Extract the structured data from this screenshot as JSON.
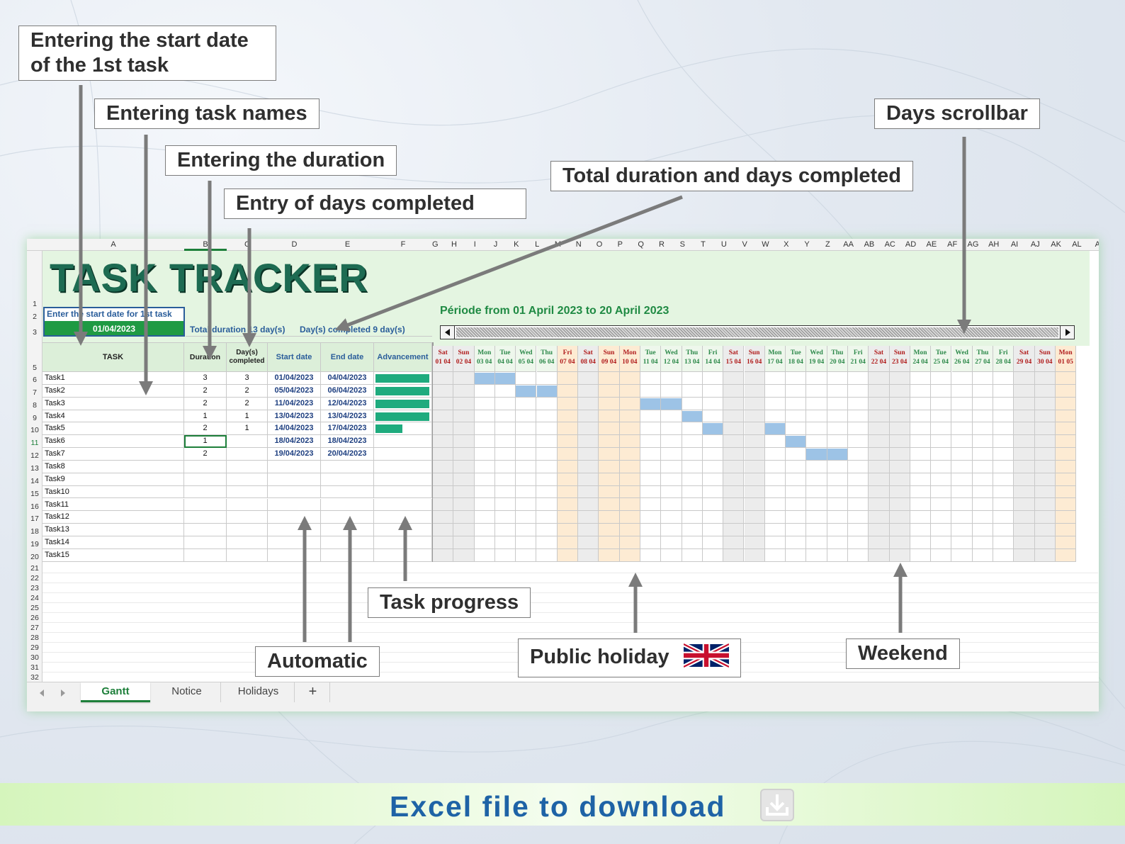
{
  "callouts": {
    "start_date": "Entering the start date\nof the 1st task",
    "task_names": "Entering task names",
    "duration": "Entering the duration",
    "days_completed": "Entry of days completed",
    "total_duration": "Total duration and days completed",
    "scrollbar": "Days scrollbar",
    "task_progress": "Task progress",
    "automatic": "Automatic",
    "public_holiday": "Public holiday",
    "weekend": "Weekend"
  },
  "sheet": {
    "title": "TASK TRACKER",
    "start_prompt": "Enter the start date for 1st task",
    "start_date": "01/04/2023",
    "total_duration": "Total duration 13 day(s)",
    "days_completed_total": "Day(s) completed 9 day(s)",
    "period": "Période from 01 April 2023 to 20 April 2023",
    "col_letters": [
      "A",
      "B",
      "C",
      "D",
      "E",
      "F",
      "G",
      "H",
      "I",
      "J",
      "K",
      "L",
      "M",
      "N",
      "O",
      "P",
      "Q",
      "R",
      "S",
      "T",
      "U",
      "V",
      "W",
      "X",
      "Y",
      "Z",
      "AA",
      "AB",
      "AC",
      "AD",
      "AE",
      "AF",
      "AG",
      "AH",
      "AI",
      "AJ",
      "AK",
      "AL",
      "A"
    ],
    "headers": {
      "task": "TASK",
      "duration": "Duration",
      "days_completed": "Day(s) completed",
      "start": "Start date",
      "end": "End date",
      "advancement": "Advancement"
    },
    "row_numbers": [
      "1",
      "2",
      "3",
      "5",
      "6",
      "7",
      "8",
      "9",
      "10",
      "11",
      "12",
      "13",
      "14",
      "15",
      "16",
      "17",
      "18",
      "19",
      "20",
      "21",
      "22",
      "23",
      "24",
      "25",
      "26",
      "27",
      "28",
      "29",
      "30",
      "31",
      "32"
    ],
    "tasks": [
      {
        "name": "Task1",
        "duration": "3",
        "done": "3",
        "start": "01/04/2023",
        "end": "04/04/2023",
        "progress": 1.0,
        "bar": [
          2,
          3
        ]
      },
      {
        "name": "Task2",
        "duration": "2",
        "done": "2",
        "start": "05/04/2023",
        "end": "06/04/2023",
        "progress": 1.0,
        "bar": [
          4,
          5
        ]
      },
      {
        "name": "Task3",
        "duration": "2",
        "done": "2",
        "start": "11/04/2023",
        "end": "12/04/2023",
        "progress": 1.0,
        "bar": [
          10,
          11
        ]
      },
      {
        "name": "Task4",
        "duration": "1",
        "done": "1",
        "start": "13/04/2023",
        "end": "13/04/2023",
        "progress": 1.0,
        "bar": [
          12
        ]
      },
      {
        "name": "Task5",
        "duration": "2",
        "done": "1",
        "start": "14/04/2023",
        "end": "17/04/2023",
        "progress": 0.5,
        "bar": [
          13,
          16
        ]
      },
      {
        "name": "Task6",
        "duration": "1",
        "done": "",
        "start": "18/04/2023",
        "end": "18/04/2023",
        "progress": 0,
        "bar": [
          17
        ]
      },
      {
        "name": "Task7",
        "duration": "2",
        "done": "",
        "start": "19/04/2023",
        "end": "20/04/2023",
        "progress": 0,
        "bar": [
          18,
          19
        ]
      },
      {
        "name": "Task8",
        "duration": "",
        "done": "",
        "start": "",
        "end": "",
        "progress": 0,
        "bar": []
      },
      {
        "name": "Task9",
        "duration": "",
        "done": "",
        "start": "",
        "end": "",
        "progress": 0,
        "bar": []
      },
      {
        "name": "Task10",
        "duration": "",
        "done": "",
        "start": "",
        "end": "",
        "progress": 0,
        "bar": []
      },
      {
        "name": "Task11",
        "duration": "",
        "done": "",
        "start": "",
        "end": "",
        "progress": 0,
        "bar": []
      },
      {
        "name": "Task12",
        "duration": "",
        "done": "",
        "start": "",
        "end": "",
        "progress": 0,
        "bar": []
      },
      {
        "name": "Task13",
        "duration": "",
        "done": "",
        "start": "",
        "end": "",
        "progress": 0,
        "bar": []
      },
      {
        "name": "Task14",
        "duration": "",
        "done": "",
        "start": "",
        "end": "",
        "progress": 0,
        "bar": []
      },
      {
        "name": "Task15",
        "duration": "",
        "done": "",
        "start": "",
        "end": "",
        "progress": 0,
        "bar": []
      }
    ],
    "days": [
      {
        "d": "Sat",
        "n": "01 04",
        "t": "we"
      },
      {
        "d": "Sun",
        "n": "02 04",
        "t": "we"
      },
      {
        "d": "Mon",
        "n": "03 04",
        "t": ""
      },
      {
        "d": "Tue",
        "n": "04 04",
        "t": ""
      },
      {
        "d": "Wed",
        "n": "05 04",
        "t": ""
      },
      {
        "d": "Thu",
        "n": "06 04",
        "t": ""
      },
      {
        "d": "Fri",
        "n": "07 04",
        "t": "hol"
      },
      {
        "d": "Sat",
        "n": "08 04",
        "t": "we"
      },
      {
        "d": "Sun",
        "n": "09 04",
        "t": "hol"
      },
      {
        "d": "Mon",
        "n": "10 04",
        "t": "hol"
      },
      {
        "d": "Tue",
        "n": "11 04",
        "t": ""
      },
      {
        "d": "Wed",
        "n": "12 04",
        "t": ""
      },
      {
        "d": "Thu",
        "n": "13 04",
        "t": ""
      },
      {
        "d": "Fri",
        "n": "14 04",
        "t": ""
      },
      {
        "d": "Sat",
        "n": "15 04",
        "t": "we"
      },
      {
        "d": "Sun",
        "n": "16 04",
        "t": "we"
      },
      {
        "d": "Mon",
        "n": "17 04",
        "t": ""
      },
      {
        "d": "Tue",
        "n": "18 04",
        "t": ""
      },
      {
        "d": "Wed",
        "n": "19 04",
        "t": ""
      },
      {
        "d": "Thu",
        "n": "20 04",
        "t": ""
      },
      {
        "d": "Fri",
        "n": "21 04",
        "t": ""
      },
      {
        "d": "Sat",
        "n": "22 04",
        "t": "we"
      },
      {
        "d": "Sun",
        "n": "23 04",
        "t": "we"
      },
      {
        "d": "Mon",
        "n": "24 04",
        "t": ""
      },
      {
        "d": "Tue",
        "n": "25 04",
        "t": ""
      },
      {
        "d": "Wed",
        "n": "26 04",
        "t": ""
      },
      {
        "d": "Thu",
        "n": "27 04",
        "t": ""
      },
      {
        "d": "Fri",
        "n": "28 04",
        "t": ""
      },
      {
        "d": "Sat",
        "n": "29 04",
        "t": "we"
      },
      {
        "d": "Sun",
        "n": "30 04",
        "t": "we"
      },
      {
        "d": "Mon",
        "n": "01 05",
        "t": "hol"
      }
    ]
  },
  "tabs": [
    "Gantt",
    "Notice",
    "Holidays",
    "+"
  ],
  "banner": {
    "text": "Excel file to download"
  },
  "icons": {
    "prev": "chevron-left-icon",
    "next": "chevron-right-icon",
    "download": "download-icon",
    "flag": "uk-flag-icon"
  },
  "colors": {
    "title": "#1d6b52",
    "green": "#1f9a43",
    "holiday": "#fdebd3",
    "weekend": "#ececec",
    "bar": "#9dc3e6",
    "progress": "#1fab7e",
    "link_blue": "#1e63a6"
  }
}
